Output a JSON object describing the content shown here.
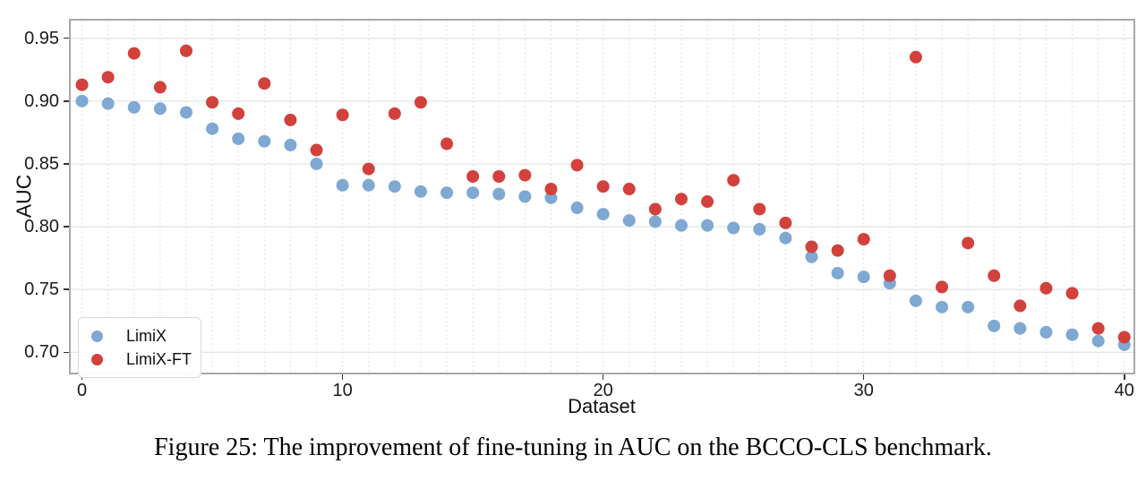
{
  "figure": {
    "caption": "Figure 25: The improvement of fine-tuning in AUC on the BCCO-CLS benchmark."
  },
  "chart_data": {
    "type": "scatter",
    "title": "",
    "xlabel": "Dataset",
    "ylabel": "AUC",
    "x": [
      0,
      1,
      2,
      3,
      4,
      5,
      6,
      7,
      8,
      9,
      10,
      11,
      12,
      13,
      14,
      15,
      16,
      17,
      18,
      19,
      20,
      21,
      22,
      23,
      24,
      25,
      26,
      27,
      28,
      29,
      30,
      31,
      32,
      33,
      34,
      35,
      36,
      37,
      38,
      39,
      40
    ],
    "series": [
      {
        "name": "LimiX",
        "color": "#7fa8d2",
        "values": [
          0.9,
          0.898,
          0.895,
          0.894,
          0.891,
          0.878,
          0.87,
          0.868,
          0.865,
          0.85,
          0.833,
          0.833,
          0.832,
          0.828,
          0.827,
          0.827,
          0.826,
          0.824,
          0.823,
          0.815,
          0.81,
          0.805,
          0.804,
          0.801,
          0.801,
          0.799,
          0.798,
          0.791,
          0.776,
          0.763,
          0.76,
          0.755,
          0.741,
          0.736,
          0.736,
          0.721,
          0.719,
          0.716,
          0.714,
          0.709,
          0.706
        ]
      },
      {
        "name": "LimiX-FT",
        "color": "#d2413c",
        "values": [
          0.913,
          0.919,
          0.938,
          0.911,
          0.94,
          0.899,
          0.89,
          0.914,
          0.885,
          0.861,
          0.889,
          0.846,
          0.89,
          0.899,
          0.866,
          0.84,
          0.84,
          0.841,
          0.83,
          0.849,
          0.832,
          0.83,
          0.814,
          0.822,
          0.82,
          0.837,
          0.814,
          0.803,
          0.784,
          0.781,
          0.79,
          0.761,
          0.935,
          0.752,
          0.787,
          0.761,
          0.737,
          0.751,
          0.747,
          0.719,
          0.712
        ]
      }
    ],
    "xticks": [
      0,
      10,
      20,
      30,
      40
    ],
    "yticks": [
      0.7,
      0.75,
      0.8,
      0.85,
      0.9,
      0.95
    ],
    "xlim": [
      -0.5,
      40.42
    ],
    "ylim": [
      0.6824,
      0.9655
    ],
    "grid": true,
    "legend_position": "lower-left",
    "marker_radius": 7,
    "grid_color_h": "#e5e5e5",
    "grid_color_v": "#e2e2e2"
  }
}
